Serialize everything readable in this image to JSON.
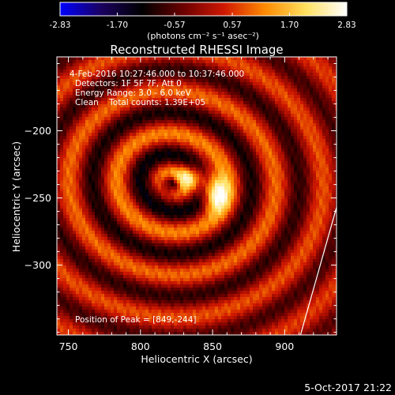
{
  "chart_data": {
    "type": "heatmap",
    "title": "Reconstructed RHESSI Image",
    "xlabel": "Heliocentric X (arcsec)",
    "ylabel": "Heliocentric Y (arcsec)",
    "xlim": [
      742,
      936
    ],
    "ylim": [
      -352,
      -145
    ],
    "x_ticks": [
      750,
      800,
      850,
      900
    ],
    "y_ticks": [
      -200,
      -250,
      -300
    ],
    "colorbar": {
      "min": -2.83,
      "max": 2.83,
      "ticks": [
        "-2.83",
        "-1.70",
        "-0.57",
        "0.57",
        "1.70",
        "2.83"
      ],
      "unit_label": "(photons cm⁻² s⁻¹ asec⁻²)",
      "colormap": [
        "#0000ff",
        "#1a0060",
        "#000000",
        "#6a0000",
        "#d01800",
        "#ff8a00",
        "#ffe060",
        "#ffffff"
      ]
    },
    "annotations": {
      "time_range": "4-Feb-2016 10:27:46.000 to 10:37:46.000",
      "detectors": "Detectors: 1F 5F 7F, Att 0",
      "energy": "Energy Range: 3.0 - 6.0 keV",
      "clean": "Clean    Total counts: 1.39E+05",
      "peak": "Position of Peak = [849,-244]"
    },
    "peak": {
      "x": 849,
      "y": -244
    },
    "source_centers": [
      {
        "x": 832,
        "y": -235,
        "value": 2.4
      },
      {
        "x": 852,
        "y": -247,
        "value": 2.7
      }
    ],
    "central_minimum": {
      "x": 822,
      "y": -239,
      "value": -2.8
    },
    "limb_line": [
      {
        "x": 911,
        "y": -352
      },
      {
        "x": 936,
        "y": -257
      }
    ]
  },
  "footer": {
    "date": "5-Oct-2017 21:22"
  }
}
